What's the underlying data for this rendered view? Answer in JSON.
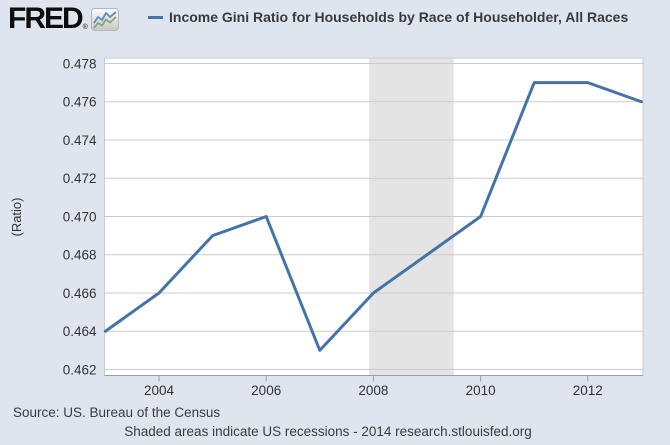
{
  "header": {
    "logo_text": "FRED",
    "logo_registered": "®"
  },
  "legend": {
    "series_label": "Income Gini Ratio for Households by Race of Householder, All Races",
    "series_color": "#4572a7"
  },
  "chart_data": {
    "type": "line",
    "title": "Income Gini Ratio for Households by Race of Householder, All Races",
    "xlabel": "",
    "ylabel": "(Ratio)",
    "x": [
      2003,
      2004,
      2005,
      2006,
      2007,
      2008,
      2009,
      2010,
      2011,
      2012,
      2013
    ],
    "series": [
      {
        "name": "Income Gini Ratio for Households by Race of Householder, All Races",
        "color": "#4572a7",
        "values": [
          0.464,
          0.466,
          0.469,
          0.47,
          0.463,
          0.466,
          0.468,
          0.47,
          0.477,
          0.477,
          0.476
        ]
      }
    ],
    "xlim": [
      2003,
      2013
    ],
    "ylim": [
      0.462,
      0.478
    ],
    "y_tick_step": 0.002,
    "y_tick_labels": [
      "0.478",
      "0.476",
      "0.474",
      "0.472",
      "0.470",
      "0.468",
      "0.466",
      "0.464",
      "0.462"
    ],
    "x_ticks": [
      2004,
      2006,
      2008,
      2010,
      2012
    ],
    "x_tick_labels": [
      "2004",
      "2006",
      "2008",
      "2010",
      "2012"
    ],
    "grid": true,
    "legend_position": "top",
    "recessions": [
      {
        "start": 2007.92,
        "end": 2009.5
      }
    ],
    "colors": {
      "background": "#dee5ef",
      "plot_background": "#ffffff",
      "gridline": "#cbcbcb",
      "plot_border": "#c6ccd4",
      "axis": "#99a0a8",
      "recession_fill": "#e4e4e4",
      "label_text": "#333333"
    }
  },
  "footer": {
    "source": "Source: US. Bureau of the Census",
    "note": "Shaded areas indicate US recessions - 2014 research.stlouisfed.org"
  }
}
